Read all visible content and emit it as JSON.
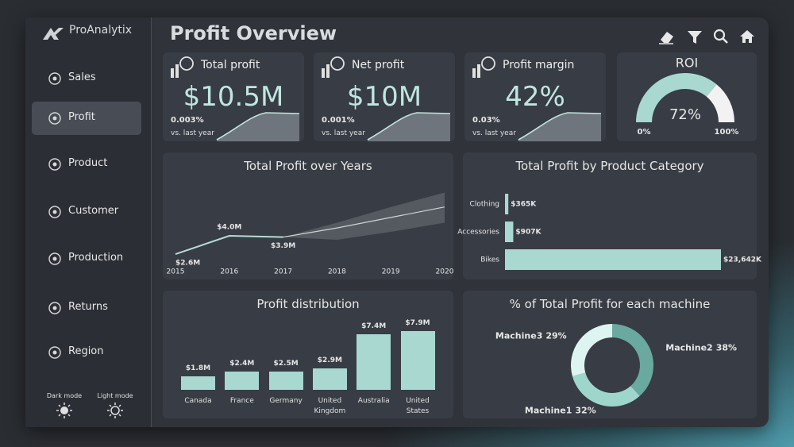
{
  "brand": "ProAnalytix",
  "title": "Profit Overview",
  "nav": [
    {
      "label": "Sales"
    },
    {
      "label": "Profit",
      "active": true
    },
    {
      "label": "Product"
    },
    {
      "label": "Customer"
    },
    {
      "label": "Production"
    },
    {
      "label": "Returns"
    },
    {
      "label": "Region"
    }
  ],
  "modes": [
    "Dark mode",
    "Light mode"
  ],
  "kpis": [
    {
      "label": "Total profit",
      "value": "$10.5M",
      "change": "0.003%",
      "compare": "vs. last year"
    },
    {
      "label": "Net profit",
      "value": "$10M",
      "change": "0.001%",
      "compare": "vs. last year"
    },
    {
      "label": "Profit margin",
      "value": "42%",
      "change": "0.03%",
      "compare": "vs. last year"
    }
  ],
  "chart_data": [
    {
      "type": "gauge",
      "title": "ROI",
      "value": 72,
      "value_label": "72%",
      "color": "#a8d8d0",
      "rest_color": "#f2f2f2",
      "range": [
        {
          "value": 0,
          "label": "0%"
        },
        {
          "value": 100,
          "label": "100%"
        }
      ]
    },
    {
      "type": "line",
      "title": "Total Profit over Years",
      "x": [
        2015,
        2016,
        2017,
        2018,
        2019,
        2020
      ],
      "xlim": [
        2015,
        2020
      ],
      "xticks": [
        2015,
        2016,
        2017,
        2018,
        2019,
        2020
      ],
      "ylim": [
        2,
        8
      ],
      "series": [
        {
          "color": "#b5ddd6",
          "values": [
            2.6,
            4.0,
            3.9,
            null,
            null,
            null
          ],
          "value_labels": [
            "$2.6M",
            "$4.0M",
            "$3.9M",
            null,
            null,
            null
          ]
        },
        {
          "color": "#cfd3d6",
          "values": [
            null,
            null,
            3.9,
            4.6,
            5.4,
            6.2
          ]
        }
      ],
      "band": {
        "color": "#555a61",
        "upper": [
          null,
          null,
          3.9,
          5.0,
          6.2,
          7.3
        ],
        "lower": [
          null,
          null,
          3.9,
          3.7,
          4.3,
          5.0
        ]
      }
    },
    {
      "type": "bar",
      "horizontal": true,
      "title": "Total Profit by Product Category",
      "color": "#a8d8d0",
      "categories": [
        "Clothing",
        "Accessories",
        "Bikes"
      ],
      "values": [
        365,
        907,
        23642
      ],
      "value_labels": [
        "$365K",
        "$907K",
        "$23,642K"
      ],
      "xlim": [
        0,
        23642
      ]
    },
    {
      "type": "bar",
      "title": "Profit distribution",
      "color": "#a8d8d0",
      "categories": [
        "Canada",
        "France",
        "Germany",
        "United Kingdom",
        "Australia",
        "United States"
      ],
      "values": [
        1.8,
        2.4,
        2.5,
        2.9,
        7.4,
        7.9
      ],
      "value_labels": [
        "$1.8M",
        "$2.4M",
        "$2.5M",
        "$2.9M",
        "$7.4M",
        "$7.9M"
      ],
      "ylim": [
        0,
        10
      ]
    },
    {
      "type": "donut",
      "title": "% of Total Profit for each machine",
      "categories": [
        "Machine2",
        "Machine1",
        "Machine3"
      ],
      "values": [
        38,
        32,
        29
      ],
      "value_labels": [
        "38%",
        "32%",
        "29%"
      ],
      "colors": [
        "#6aa99f",
        "#9fd6cc",
        "#def4f0"
      ]
    }
  ]
}
